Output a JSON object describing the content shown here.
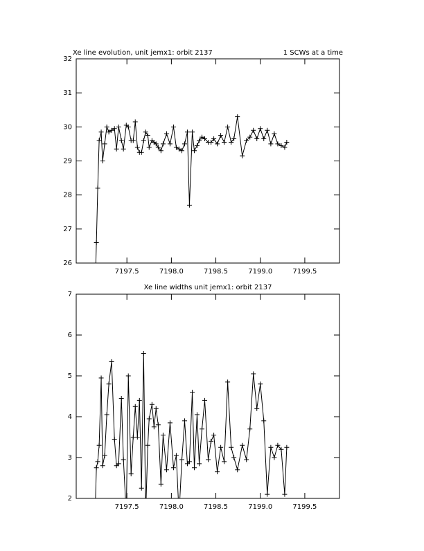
{
  "chart_data": [
    {
      "type": "line",
      "title": "Xe line evolution, unit jemx1: orbit 2137",
      "annotation": "1 SCWs at a time",
      "color": "#000000",
      "marker": "+",
      "x": [
        7197.141,
        7197.157,
        7197.172,
        7197.188,
        7197.211,
        7197.227,
        7197.25,
        7197.274,
        7197.297,
        7197.328,
        7197.36,
        7197.383,
        7197.407,
        7197.438,
        7197.461,
        7197.493,
        7197.516,
        7197.547,
        7197.571,
        7197.594,
        7197.618,
        7197.641,
        7197.664,
        7197.688,
        7197.711,
        7197.735,
        7197.75,
        7197.782,
        7197.805,
        7197.828,
        7197.852,
        7197.883,
        7197.907,
        7197.946,
        7197.985,
        7198.024,
        7198.055,
        7198.086,
        7198.118,
        7198.149,
        7198.18,
        7198.203,
        7198.235,
        7198.258,
        7198.289,
        7198.313,
        7198.344,
        7198.375,
        7198.414,
        7198.446,
        7198.477,
        7198.516,
        7198.555,
        7198.594,
        7198.633,
        7198.672,
        7198.703,
        7198.743,
        7198.797,
        7198.844,
        7198.883,
        7198.922,
        7198.961,
        7199.0,
        7199.039,
        7199.078,
        7199.118,
        7199.157,
        7199.196,
        7199.235,
        7199.274,
        7199.297
      ],
      "values": [
        25.0,
        26.6,
        28.2,
        29.6,
        29.85,
        29.0,
        29.5,
        30.0,
        29.85,
        29.9,
        29.95,
        29.35,
        30.0,
        29.6,
        29.35,
        30.05,
        30.0,
        29.6,
        29.6,
        30.15,
        29.4,
        29.25,
        29.25,
        29.6,
        29.85,
        29.75,
        29.4,
        29.6,
        29.55,
        29.5,
        29.4,
        29.3,
        29.5,
        29.8,
        29.5,
        30.0,
        29.4,
        29.35,
        29.3,
        29.5,
        29.85,
        27.7,
        29.85,
        29.3,
        29.45,
        29.6,
        29.7,
        29.65,
        29.55,
        29.55,
        29.65,
        29.5,
        29.75,
        29.55,
        30.0,
        29.55,
        29.65,
        30.3,
        29.15,
        29.6,
        29.7,
        29.9,
        29.65,
        29.95,
        29.65,
        29.9,
        29.5,
        29.8,
        29.5,
        29.45,
        29.4,
        29.55
      ],
      "xlim": [
        7196.93,
        7199.89
      ],
      "ylim": [
        26,
        32
      ],
      "xticks": [
        7197.5,
        {
          "value": 7198,
          "label": "7198.0"
        },
        7198.5,
        {
          "value": 7199,
          "label": "7199.0"
        },
        7199.5
      ],
      "yticks": [
        26,
        27,
        28,
        29,
        30,
        31,
        32
      ]
    },
    {
      "type": "line",
      "title": "Xe line widths unit jemx1: orbit 2137",
      "color": "#000000",
      "marker": "+",
      "x": [
        7197.141,
        7197.157,
        7197.172,
        7197.188,
        7197.211,
        7197.227,
        7197.25,
        7197.274,
        7197.297,
        7197.328,
        7197.36,
        7197.383,
        7197.407,
        7197.438,
        7197.461,
        7197.493,
        7197.516,
        7197.547,
        7197.571,
        7197.594,
        7197.618,
        7197.641,
        7197.664,
        7197.688,
        7197.711,
        7197.735,
        7197.75,
        7197.782,
        7197.805,
        7197.828,
        7197.852,
        7197.883,
        7197.907,
        7197.946,
        7197.985,
        7198.024,
        7198.055,
        7198.086,
        7198.118,
        7198.149,
        7198.18,
        7198.203,
        7198.235,
        7198.258,
        7198.289,
        7198.313,
        7198.344,
        7198.375,
        7198.414,
        7198.446,
        7198.477,
        7198.516,
        7198.555,
        7198.594,
        7198.633,
        7198.672,
        7198.703,
        7198.743,
        7198.797,
        7198.844,
        7198.883,
        7198.922,
        7198.961,
        7199.0,
        7199.039,
        7199.078,
        7199.118,
        7199.157,
        7199.196,
        7199.235,
        7199.274,
        7199.297
      ],
      "values": [
        1.5,
        2.75,
        2.9,
        3.3,
        4.95,
        2.8,
        3.05,
        4.05,
        4.8,
        5.35,
        3.45,
        2.8,
        2.85,
        4.45,
        2.95,
        1.6,
        5.0,
        2.6,
        3.5,
        4.25,
        3.5,
        4.4,
        2.25,
        5.55,
        1.6,
        3.3,
        3.95,
        4.3,
        3.75,
        4.2,
        3.8,
        2.35,
        3.55,
        2.7,
        3.85,
        2.75,
        3.05,
        1.6,
        2.95,
        3.9,
        2.85,
        2.9,
        4.6,
        2.75,
        4.05,
        2.85,
        3.7,
        4.4,
        2.95,
        3.4,
        3.55,
        2.65,
        3.25,
        2.9,
        4.85,
        3.25,
        3.0,
        2.7,
        3.3,
        2.95,
        3.7,
        5.05,
        4.2,
        4.8,
        3.9,
        2.1,
        3.25,
        3.0,
        3.3,
        3.2,
        2.1,
        3.25
      ],
      "xlim": [
        7196.93,
        7199.89
      ],
      "ylim": [
        2,
        7
      ],
      "xticks": [
        7197.5,
        {
          "value": 7198,
          "label": "7198.0"
        },
        7198.5,
        {
          "value": 7199,
          "label": "7199.0"
        },
        7199.5
      ],
      "yticks": [
        2,
        3,
        4,
        5,
        6,
        7
      ]
    }
  ]
}
